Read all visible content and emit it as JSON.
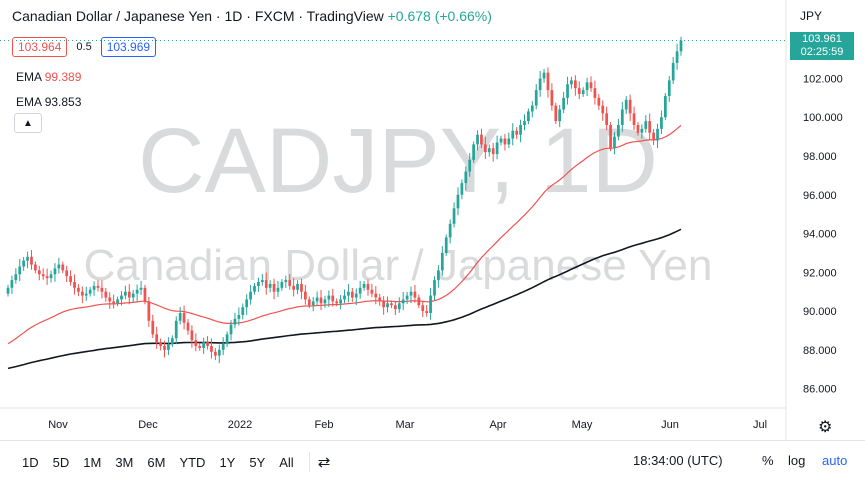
{
  "header": {
    "title": "Canadian Dollar / Japanese Yen · 1D · FXCM · TradingView",
    "change": "+0.678 (+0.66%)",
    "bid": "103.964",
    "spread": "0.5",
    "ask": "103.969"
  },
  "ema": [
    {
      "label": "EMA",
      "value": "99.389"
    },
    {
      "label": "EMA",
      "value": "93.853"
    }
  ],
  "watermark": {
    "symbol": "CADJPY, 1D",
    "name": "Canadian Dollar / Japanese Yen"
  },
  "price_axis": {
    "currency": "JPY",
    "ticks": [
      "102.000",
      "100.000",
      "98.000",
      "96.000",
      "94.000",
      "92.000",
      "90.000",
      "88.000",
      "86.000"
    ],
    "current_price": "103.961",
    "countdown": "02:25:59"
  },
  "time_axis": [
    "Nov",
    "Dec",
    "2022",
    "Feb",
    "Mar",
    "Apr",
    "May",
    "Jun",
    "Jul"
  ],
  "bottom_bar": {
    "ranges": [
      "1D",
      "5D",
      "1M",
      "3M",
      "6M",
      "YTD",
      "1Y",
      "5Y",
      "All"
    ],
    "clock": "18:34:00 (UTC)",
    "percent": "%",
    "log": "log",
    "auto": "auto"
  },
  "colors": {
    "up": "#26a69a",
    "down": "#ef5350",
    "ema_fast": "#ef5350",
    "ema_slow": "#131722"
  },
  "chart_data": {
    "type": "candlestick",
    "ylim": [
      85,
      104.5
    ],
    "series": [
      {
        "name": "CADJPY",
        "values": [
          91.2,
          91.6,
          91.9,
          92.3,
          92.6,
          92.8,
          92.4,
          92.1,
          91.9,
          91.8,
          91.7,
          91.9,
          92.2,
          92.4,
          92.1,
          91.8,
          91.5,
          91.2,
          91.0,
          90.8,
          90.9,
          91.1,
          91.3,
          91.2,
          91.0,
          90.7,
          90.5,
          90.4,
          90.6,
          90.8,
          91.0,
          90.7,
          90.9,
          91.1,
          91.2,
          90.5,
          89.5,
          88.8,
          88.4,
          88.2,
          88.0,
          88.3,
          88.6,
          89.5,
          89.9,
          89.4,
          89.0,
          88.5,
          88.2,
          88.1,
          88.4,
          88.2,
          87.9,
          87.7,
          88.0,
          88.3,
          88.8,
          89.3,
          89.6,
          89.8,
          90.2,
          90.6,
          91.0,
          91.3,
          91.5,
          91.6,
          91.2,
          91.4,
          91.0,
          91.2,
          91.5,
          91.6,
          91.3,
          91.1,
          91.4,
          91.0,
          90.6,
          90.3,
          90.5,
          90.7,
          90.4,
          90.6,
          90.8,
          90.5,
          90.4,
          90.6,
          90.8,
          91.0,
          90.7,
          90.9,
          91.2,
          91.4,
          91.1,
          90.9,
          90.7,
          90.5,
          90.2,
          90.4,
          90.3,
          90.1,
          90.4,
          90.6,
          90.8,
          91.0,
          90.7,
          90.3,
          90.0,
          89.9,
          90.8,
          91.6,
          92.1,
          93.0,
          93.8,
          94.5,
          95.3,
          96.0,
          96.6,
          97.2,
          97.8,
          98.6,
          99.1,
          98.6,
          98.2,
          98.4,
          98.1,
          98.7,
          98.9,
          98.6,
          98.9,
          99.3,
          99.1,
          99.6,
          99.8,
          100.3,
          100.6,
          101.4,
          102.0,
          102.3,
          101.4,
          100.6,
          99.8,
          100.4,
          101.0,
          101.7,
          101.9,
          101.5,
          101.2,
          101.4,
          101.8,
          101.5,
          101.0,
          100.6,
          100.2,
          99.6,
          98.4,
          99.0,
          99.6,
          100.4,
          100.9,
          100.2,
          99.6,
          99.2,
          99.4,
          99.8,
          99.2,
          98.8,
          99.4,
          100.0,
          101.1,
          101.9,
          102.8,
          103.4,
          103.96
        ]
      }
    ]
  }
}
